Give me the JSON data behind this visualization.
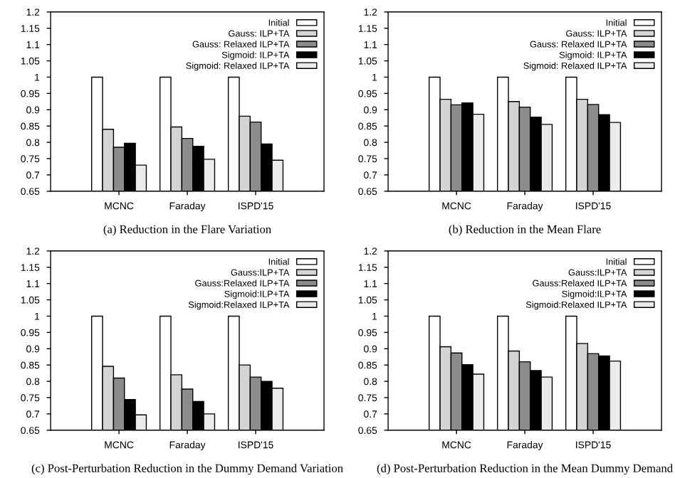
{
  "chart_data": [
    {
      "type": "bar",
      "title": "(a) Reduction in the Flare Variation",
      "categories": [
        "MCNC",
        "Faraday",
        "ISPD'15"
      ],
      "ylim": [
        0.65,
        1.2
      ],
      "yticks": [
        {
          "value": 0.65,
          "label": "0.65"
        },
        {
          "value": 0.7,
          "label": "0.7"
        },
        {
          "value": 0.75,
          "label": "0.75"
        },
        {
          "value": 0.8,
          "label": "0.8"
        },
        {
          "value": 0.85,
          "label": "0.85"
        },
        {
          "value": 0.9,
          "label": "0.9"
        },
        {
          "value": 0.95,
          "label": "0.95"
        },
        {
          "value": 1,
          "label": "1"
        },
        {
          "value": 1.05,
          "label": "1.05"
        },
        {
          "value": 1.1,
          "label": "1.1"
        },
        {
          "value": 1.15,
          "label": "1.15"
        },
        {
          "value": 1.2,
          "label": "1.2"
        }
      ],
      "legend": "top right",
      "grid": false,
      "series": [
        {
          "name": "Initial",
          "color": "#ffffff",
          "values": [
            1,
            1,
            1
          ]
        },
        {
          "name": "Gauss: ILP+TA",
          "color": "#d4d4d4",
          "values": [
            0.84,
            0.847,
            0.88
          ]
        },
        {
          "name": "Gauss: Relaxed ILP+TA",
          "color": "#8c8c8c",
          "values": [
            0.785,
            0.812,
            0.862
          ]
        },
        {
          "name": "Sigmoid: ILP+TA",
          "color": "#000000",
          "values": [
            0.797,
            0.788,
            0.795
          ]
        },
        {
          "name": "Sigmoid: Relaxed ILP+TA",
          "color": "#ebebeb",
          "values": [
            0.73,
            0.748,
            0.745
          ]
        }
      ]
    },
    {
      "type": "bar",
      "title": "(b) Reduction in the Mean Flare",
      "categories": [
        "MCNC",
        "Faraday",
        "ISPD'15"
      ],
      "ylim": [
        0.65,
        1.2
      ],
      "yticks": [
        {
          "value": 0.65,
          "label": "0.65"
        },
        {
          "value": 0.7,
          "label": "0.7"
        },
        {
          "value": 0.75,
          "label": "0.75"
        },
        {
          "value": 0.8,
          "label": "0.8"
        },
        {
          "value": 0.85,
          "label": "0.85"
        },
        {
          "value": 0.9,
          "label": "0.9"
        },
        {
          "value": 0.95,
          "label": "0.95"
        },
        {
          "value": 1,
          "label": "1"
        },
        {
          "value": 1.05,
          "label": "1.05"
        },
        {
          "value": 1.1,
          "label": "1.1"
        },
        {
          "value": 1.15,
          "label": "1.15"
        },
        {
          "value": 1.2,
          "label": "1.2"
        }
      ],
      "legend": "top right",
      "grid": false,
      "series": [
        {
          "name": "Initial",
          "color": "#ffffff",
          "values": [
            1,
            1,
            1
          ]
        },
        {
          "name": "Gauss: ILP+TA",
          "color": "#d4d4d4",
          "values": [
            0.932,
            0.925,
            0.932
          ]
        },
        {
          "name": "Gauss: Relaxed ILP+TA",
          "color": "#8c8c8c",
          "values": [
            0.915,
            0.908,
            0.916
          ]
        },
        {
          "name": "Sigmoid: ILP+TA",
          "color": "#000000",
          "values": [
            0.921,
            0.877,
            0.885
          ]
        },
        {
          "name": "Sigmoid: Relaxed ILP+TA",
          "color": "#ebebeb",
          "values": [
            0.886,
            0.855,
            0.861
          ]
        }
      ]
    },
    {
      "type": "bar",
      "title": "(c) Post-Perturbation Reduction in the Dummy Demand Variation",
      "categories": [
        "MCNC",
        "Faraday",
        "ISPD'15"
      ],
      "ylim": [
        0.65,
        1.2
      ],
      "yticks": [
        {
          "value": 0.65,
          "label": "0.65"
        },
        {
          "value": 0.7,
          "label": "0.7"
        },
        {
          "value": 0.75,
          "label": "0.75"
        },
        {
          "value": 0.8,
          "label": "0.8"
        },
        {
          "value": 0.85,
          "label": "0.85"
        },
        {
          "value": 0.9,
          "label": "0.9"
        },
        {
          "value": 0.95,
          "label": "0.95"
        },
        {
          "value": 1,
          "label": "1"
        },
        {
          "value": 1.05,
          "label": "1.05"
        },
        {
          "value": 1.1,
          "label": "1.1"
        },
        {
          "value": 1.15,
          "label": "1.15"
        },
        {
          "value": 1.2,
          "label": "1.2"
        }
      ],
      "legend": "top right",
      "grid": false,
      "series": [
        {
          "name": "Initial",
          "color": "#ffffff",
          "values": [
            1,
            1,
            1
          ]
        },
        {
          "name": "Gauss:ILP+TA",
          "color": "#d4d4d4",
          "values": [
            0.846,
            0.82,
            0.85
          ]
        },
        {
          "name": "Gauss:Relaxed ILP+TA",
          "color": "#8c8c8c",
          "values": [
            0.81,
            0.776,
            0.813
          ]
        },
        {
          "name": "Sigmoid:ILP+TA",
          "color": "#000000",
          "values": [
            0.744,
            0.738,
            0.8
          ]
        },
        {
          "name": "Sigmoid:Relaxed ILP+TA",
          "color": "#ebebeb",
          "values": [
            0.697,
            0.7,
            0.779
          ]
        }
      ]
    },
    {
      "type": "bar",
      "title": "(d) Post-Perturbation Reduction in the Mean Dummy Demand",
      "categories": [
        "MCNC",
        "Faraday",
        "ISPD'15"
      ],
      "ylim": [
        0.65,
        1.2
      ],
      "yticks": [
        {
          "value": 0.65,
          "label": "0.65"
        },
        {
          "value": 0.7,
          "label": "0.7"
        },
        {
          "value": 0.75,
          "label": "0.75"
        },
        {
          "value": 0.8,
          "label": "0.8"
        },
        {
          "value": 0.85,
          "label": "0.85"
        },
        {
          "value": 0.9,
          "label": "0.9"
        },
        {
          "value": 0.95,
          "label": "0.95"
        },
        {
          "value": 1,
          "label": "1"
        },
        {
          "value": 1.05,
          "label": "1.05"
        },
        {
          "value": 1.1,
          "label": "1.1"
        },
        {
          "value": 1.15,
          "label": "1.15"
        },
        {
          "value": 1.2,
          "label": "1.2"
        }
      ],
      "legend": "top right",
      "grid": false,
      "series": [
        {
          "name": "Initial",
          "color": "#ffffff",
          "values": [
            1,
            1,
            1
          ]
        },
        {
          "name": "Gauss:ILP+TA",
          "color": "#d4d4d4",
          "values": [
            0.906,
            0.893,
            0.916
          ]
        },
        {
          "name": "Gauss:Relaxed ILP+TA",
          "color": "#8c8c8c",
          "values": [
            0.887,
            0.86,
            0.885
          ]
        },
        {
          "name": "Sigmoid:ILP+TA",
          "color": "#000000",
          "values": [
            0.851,
            0.833,
            0.878
          ]
        },
        {
          "name": "Sigmoid:Relaxed ILP+TA",
          "color": "#ebebeb",
          "values": [
            0.822,
            0.813,
            0.862
          ]
        }
      ]
    }
  ]
}
